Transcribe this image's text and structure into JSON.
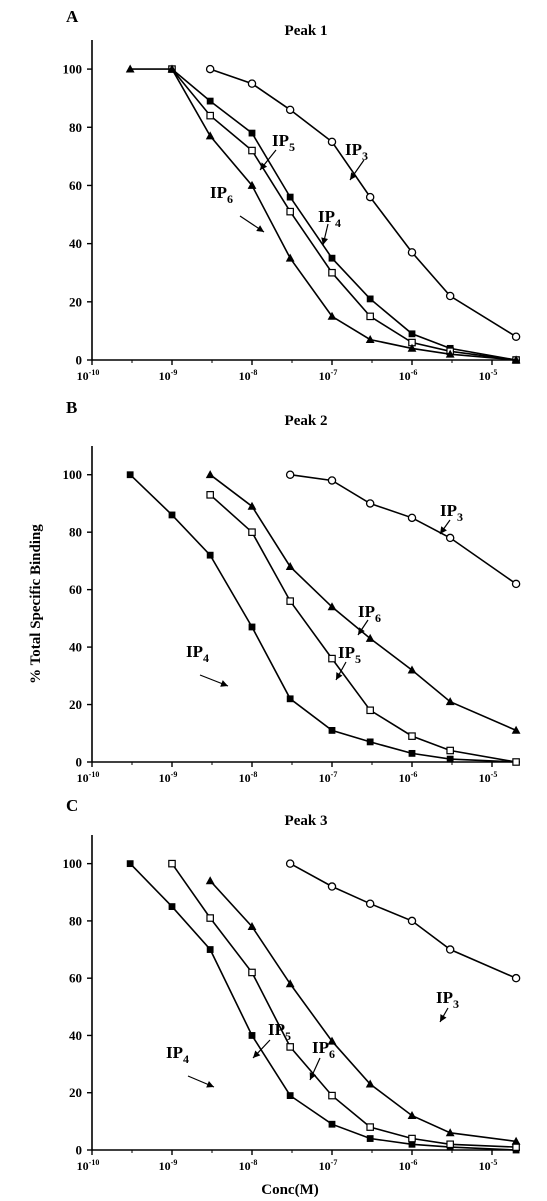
{
  "chart_data": [
    {
      "type": "line",
      "panel": "A",
      "title": "Peak 1",
      "xscale": "log",
      "xlim": [
        "1e-10",
        "1e-5"
      ],
      "ylim": [
        0,
        100
      ],
      "xticks": [
        "10-10",
        "10-9",
        "10-8",
        "10-7",
        "10-6",
        "10-5"
      ],
      "yticks": [
        0,
        20,
        40,
        60,
        80,
        100
      ],
      "xlabel": "",
      "ylabel": "",
      "series": [
        {
          "name": "IP3",
          "marker": "circle-open",
          "x": [
            "3e-9",
            "1e-8",
            "3e-8",
            "1e-7",
            "3e-7",
            "1e-6",
            "3e-6",
            "2e-5"
          ],
          "y": [
            100,
            95,
            86,
            75,
            56,
            37,
            22,
            8
          ]
        },
        {
          "name": "IP4",
          "marker": "square-filled",
          "x": [
            "1e-9",
            "3e-9",
            "1e-8",
            "3e-8",
            "1e-7",
            "3e-7",
            "1e-6",
            "3e-6",
            "2e-5"
          ],
          "y": [
            100,
            89,
            78,
            56,
            35,
            21,
            9,
            4,
            0
          ]
        },
        {
          "name": "IP5",
          "marker": "square-open",
          "x": [
            "1e-9",
            "3e-9",
            "1e-8",
            "3e-8",
            "1e-7",
            "3e-7",
            "1e-6",
            "3e-6",
            "2e-5"
          ],
          "y": [
            100,
            84,
            72,
            51,
            30,
            15,
            6,
            3,
            0
          ]
        },
        {
          "name": "IP6",
          "marker": "triangle-filled",
          "x": [
            "3e-10",
            "1e-9",
            "3e-9",
            "1e-8",
            "3e-8",
            "1e-7",
            "3e-7",
            "1e-6",
            "3e-6",
            "2e-5"
          ],
          "y": [
            100,
            100,
            77,
            60,
            35,
            15,
            7,
            4,
            2,
            0
          ]
        }
      ],
      "labels": [
        {
          "series": "IP3",
          "base": "IP",
          "sub": "3"
        },
        {
          "series": "IP4",
          "base": "IP",
          "sub": "4"
        },
        {
          "series": "IP5",
          "base": "IP",
          "sub": "5"
        },
        {
          "series": "IP6",
          "base": "IP",
          "sub": "6"
        }
      ]
    },
    {
      "type": "line",
      "panel": "B",
      "title": "Peak 2",
      "xscale": "log",
      "xlim": [
        "1e-10",
        "1e-5"
      ],
      "ylim": [
        0,
        100
      ],
      "xticks": [
        "10-10",
        "10-9",
        "10-8",
        "10-7",
        "10-6",
        "10-5"
      ],
      "yticks": [
        0,
        20,
        40,
        60,
        80,
        100
      ],
      "xlabel": "",
      "ylabel": "% Total Specific Binding",
      "series": [
        {
          "name": "IP3",
          "marker": "circle-open",
          "x": [
            "3e-8",
            "1e-7",
            "3e-7",
            "1e-6",
            "3e-6",
            "2e-5"
          ],
          "y": [
            100,
            98,
            90,
            85,
            78,
            62
          ]
        },
        {
          "name": "IP4",
          "marker": "square-filled",
          "x": [
            "3e-10",
            "1e-9",
            "3e-9",
            "1e-8",
            "3e-8",
            "1e-7",
            "3e-7",
            "1e-6",
            "3e-6",
            "2e-5"
          ],
          "y": [
            100,
            86,
            72,
            47,
            22,
            11,
            7,
            3,
            1,
            0
          ]
        },
        {
          "name": "IP5",
          "marker": "square-open",
          "x": [
            "3e-9",
            "1e-8",
            "3e-8",
            "1e-7",
            "3e-7",
            "1e-6",
            "3e-6",
            "2e-5"
          ],
          "y": [
            93,
            80,
            56,
            36,
            18,
            9,
            4,
            0
          ]
        },
        {
          "name": "IP6",
          "marker": "triangle-filled",
          "x": [
            "3e-9",
            "1e-8",
            "3e-8",
            "1e-7",
            "3e-7",
            "1e-6",
            "3e-6",
            "2e-5"
          ],
          "y": [
            100,
            89,
            68,
            54,
            43,
            32,
            21,
            11
          ]
        }
      ],
      "labels": [
        {
          "series": "IP3",
          "base": "IP",
          "sub": "3"
        },
        {
          "series": "IP6",
          "base": "IP",
          "sub": "6"
        },
        {
          "series": "IP5",
          "base": "IP",
          "sub": "5"
        },
        {
          "series": "IP4",
          "base": "IP",
          "sub": "4"
        }
      ]
    },
    {
      "type": "line",
      "panel": "C",
      "title": "Peak 3",
      "xscale": "log",
      "xlim": [
        "1e-10",
        "1e-5"
      ],
      "ylim": [
        0,
        100
      ],
      "xticks": [
        "10-10",
        "10-9",
        "10-8",
        "10-7",
        "10-6",
        "10-5"
      ],
      "yticks": [
        0,
        20,
        40,
        60,
        80,
        100
      ],
      "xlabel": "Conc(M)",
      "ylabel": "",
      "series": [
        {
          "name": "IP3",
          "marker": "circle-open",
          "x": [
            "3e-8",
            "1e-7",
            "3e-7",
            "1e-6",
            "3e-6",
            "2e-5"
          ],
          "y": [
            100,
            92,
            86,
            80,
            70,
            60
          ]
        },
        {
          "name": "IP4",
          "marker": "square-filled",
          "x": [
            "3e-10",
            "1e-9",
            "3e-9",
            "1e-8",
            "3e-8",
            "1e-7",
            "3e-7",
            "1e-6",
            "3e-6",
            "2e-5"
          ],
          "y": [
            100,
            85,
            70,
            40,
            19,
            9,
            4,
            2,
            1,
            0
          ]
        },
        {
          "name": "IP5",
          "marker": "square-open",
          "x": [
            "1e-9",
            "3e-9",
            "1e-8",
            "3e-8",
            "1e-7",
            "3e-7",
            "1e-6",
            "3e-6",
            "2e-5"
          ],
          "y": [
            100,
            81,
            62,
            36,
            19,
            8,
            4,
            2,
            1
          ]
        },
        {
          "name": "IP6",
          "marker": "triangle-filled",
          "x": [
            "3e-9",
            "1e-8",
            "3e-8",
            "1e-7",
            "3e-7",
            "1e-6",
            "3e-6",
            "2e-5"
          ],
          "y": [
            94,
            78,
            58,
            38,
            23,
            12,
            6,
            3
          ]
        }
      ],
      "labels": [
        {
          "series": "IP3",
          "base": "IP",
          "sub": "3"
        },
        {
          "series": "IP5",
          "base": "IP",
          "sub": "5"
        },
        {
          "series": "IP6",
          "base": "IP",
          "sub": "6"
        },
        {
          "series": "IP4",
          "base": "IP",
          "sub": "4"
        }
      ]
    }
  ]
}
